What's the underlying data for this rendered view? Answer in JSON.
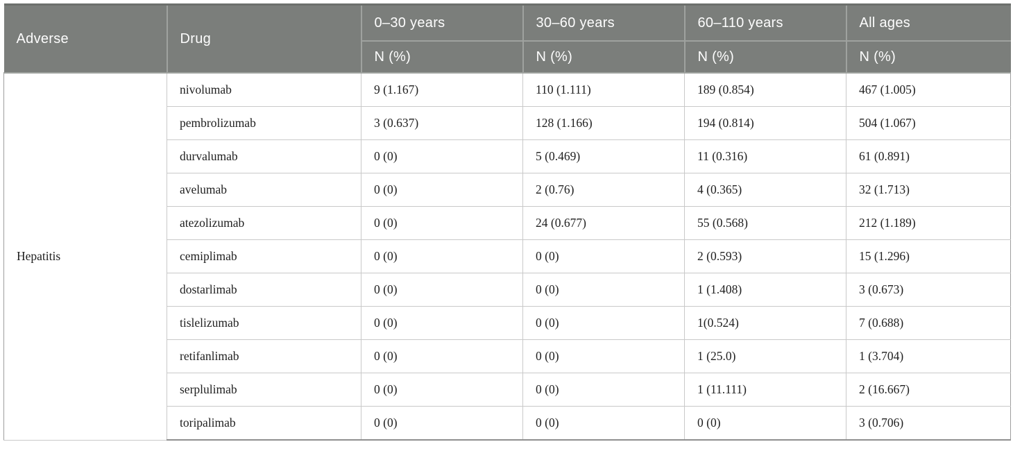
{
  "table": {
    "header": {
      "adverse_label": "Adverse",
      "drug_label": "Drug",
      "age_groups": [
        "0–30 years",
        "30–60 years",
        "60–110 years",
        "All ages"
      ],
      "subheader": "N (%)"
    },
    "adverse_event": "Hepatitis",
    "rows": [
      {
        "drug": "nivolumab",
        "values": [
          "9 (1.167)",
          "110 (1.111)",
          "189 (0.854)",
          "467 (1.005)"
        ]
      },
      {
        "drug": "pembrolizumab",
        "values": [
          "3 (0.637)",
          "128 (1.166)",
          "194 (0.814)",
          "504 (1.067)"
        ]
      },
      {
        "drug": "durvalumab",
        "values": [
          "0 (0)",
          "5 (0.469)",
          "11 (0.316)",
          "61 (0.891)"
        ]
      },
      {
        "drug": "avelumab",
        "values": [
          "0 (0)",
          "2 (0.76)",
          "4 (0.365)",
          "32 (1.713)"
        ]
      },
      {
        "drug": "atezolizumab",
        "values": [
          "0 (0)",
          "24 (0.677)",
          "55 (0.568)",
          "212 (1.189)"
        ]
      },
      {
        "drug": "cemiplimab",
        "values": [
          "0 (0)",
          "0 (0)",
          "2 (0.593)",
          "15 (1.296)"
        ]
      },
      {
        "drug": "dostarlimab",
        "values": [
          "0 (0)",
          "0 (0)",
          "1 (1.408)",
          "3 (0.673)"
        ]
      },
      {
        "drug": "tislelizumab",
        "values": [
          "0 (0)",
          "0 (0)",
          "1(0.524)",
          "7 (0.688)"
        ]
      },
      {
        "drug": "retifanlimab",
        "values": [
          "0 (0)",
          "0 (0)",
          "1 (25.0)",
          "1 (3.704)"
        ]
      },
      {
        "drug": "serplulimab",
        "values": [
          "0 (0)",
          "0 (0)",
          "1 (11.111)",
          "2 (16.667)"
        ]
      },
      {
        "drug": "toripalimab",
        "values": [
          "0 (0)",
          "0 (0)",
          "0 (0)",
          "3 (0.706)"
        ]
      }
    ]
  },
  "colors": {
    "header_bg": "#7b7e7b",
    "header_divider": "#9fa29f",
    "header_top_edge": "#6d706d",
    "header_text": "#fdfdfd",
    "body_grid": "#c9c9c9",
    "body_outer_border": "#9e9e9e",
    "body_text": "#1f1f1f"
  }
}
